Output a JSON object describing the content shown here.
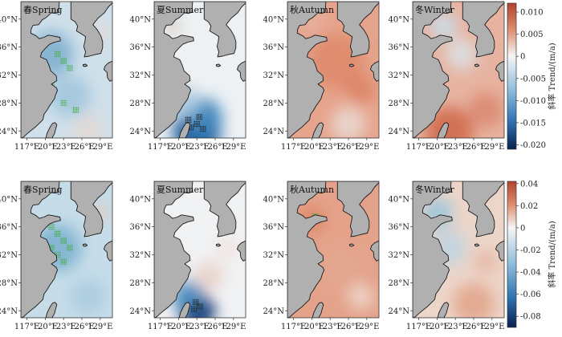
{
  "rows": [
    {
      "id": "top",
      "panels": [
        {
          "label": "春Spring",
          "pattern": "spring1"
        },
        {
          "label": "夏Summer",
          "pattern": "summer1"
        },
        {
          "label": "秋Autumn",
          "pattern": "autumn1"
        },
        {
          "label": "冬Winter",
          "pattern": "winter1"
        }
      ],
      "colorbar": {
        "title": "斜率 Trend/(m/a)",
        "ticks": [
          "0.010",
          "0.005",
          "0",
          "-0.005",
          "-0.010",
          "-0.015",
          "-0.020"
        ],
        "min": -0.021,
        "max": 0.012
      }
    },
    {
      "id": "bottom",
      "panels": [
        {
          "label": "春Spring",
          "pattern": "spring2"
        },
        {
          "label": "夏Summer",
          "pattern": "summer2"
        },
        {
          "label": "秋Autumn",
          "pattern": "autumn2"
        },
        {
          "label": "冬Winter",
          "pattern": "winter2"
        }
      ],
      "colorbar": {
        "title": "斜率 Trend/(m/a)",
        "ticks": [
          "0.04",
          "0.02",
          "0",
          "-0.02",
          "-0.04",
          "-0.06",
          "-0.08"
        ],
        "min": -0.09,
        "max": 0.042
      }
    }
  ],
  "lat_ticks": [
    "40°N",
    "36°N",
    "32°N",
    "28°N",
    "24°N"
  ],
  "lon_ticks": [
    "117°E",
    "120°E",
    "123°E",
    "126°E",
    "129°E"
  ],
  "colors": {
    "land": "#b0b0b0",
    "coast": "#1a1a1a",
    "warm": "#c8553d",
    "cool": "#2166ac",
    "neutral": "#f4f4f4",
    "deep": "#08306b",
    "stipple_green": "#3fae3f",
    "stipple_dark": "#222222"
  }
}
